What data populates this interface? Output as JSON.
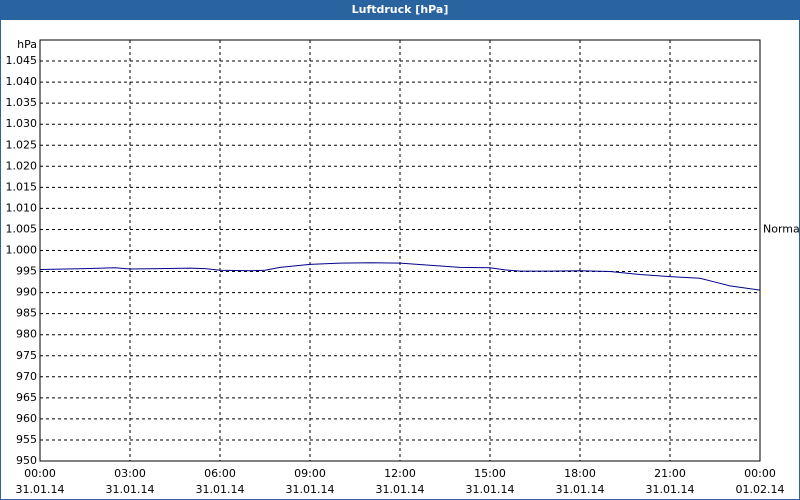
{
  "chart_data": {
    "type": "line",
    "title": "Luftdruck [hPa]",
    "y_unit": "hPa",
    "x": [
      0,
      1.5,
      2.5,
      3,
      4,
      5,
      5.5,
      6,
      7,
      7.5,
      8,
      9,
      10,
      11,
      12,
      13,
      14,
      15,
      15.5,
      16,
      17,
      18,
      19,
      20,
      21,
      22,
      22.5,
      23,
      24
    ],
    "series": [
      {
        "color": "#00008b",
        "values": [
          995.5,
          995.7,
          995.9,
          995.6,
          995.7,
          995.8,
          995.7,
          995.3,
          995.2,
          995.3,
          996,
          996.7,
          997,
          997.1,
          997,
          996.5,
          996,
          995.9,
          995.4,
          995.1,
          995.1,
          995.2,
          995,
          994.3,
          993.8,
          993.4,
          992.5,
          991.6,
          990.6
        ]
      }
    ],
    "xlim": [
      0,
      24
    ],
    "xticks": [
      {
        "value": 0,
        "label": "00:00",
        "date": "31.01.14"
      },
      {
        "value": 3,
        "label": "03:00",
        "date": "31.01.14"
      },
      {
        "value": 6,
        "label": "06:00",
        "date": "31.01.14"
      },
      {
        "value": 9,
        "label": "09:00",
        "date": "31.01.14"
      },
      {
        "value": 12,
        "label": "12:00",
        "date": "31.01.14"
      },
      {
        "value": 15,
        "label": "15:00",
        "date": "31.01.14"
      },
      {
        "value": 18,
        "label": "18:00",
        "date": "31.01.14"
      },
      {
        "value": 21,
        "label": "21:00",
        "date": "31.01.14"
      },
      {
        "value": 24,
        "label": "00:00",
        "date": "01.02.14"
      }
    ],
    "ylim": [
      950,
      1050
    ],
    "yticks": [
      950,
      955,
      960,
      965,
      970,
      975,
      980,
      985,
      990,
      995,
      {
        "value": 1000,
        "label": "1.000"
      },
      {
        "value": 1005,
        "label": "1.005"
      },
      {
        "value": 1010,
        "label": "1.010"
      },
      {
        "value": 1015,
        "label": "1.015"
      },
      {
        "value": 1020,
        "label": "1.020"
      },
      {
        "value": 1025,
        "label": "1.025"
      },
      {
        "value": 1030,
        "label": "1.030"
      },
      {
        "value": 1035,
        "label": "1.035"
      },
      {
        "value": 1040,
        "label": "1.040"
      },
      {
        "value": 1045,
        "label": "1.045"
      }
    ],
    "reference": {
      "label": "Normal",
      "value": 1005
    },
    "grid": true
  }
}
